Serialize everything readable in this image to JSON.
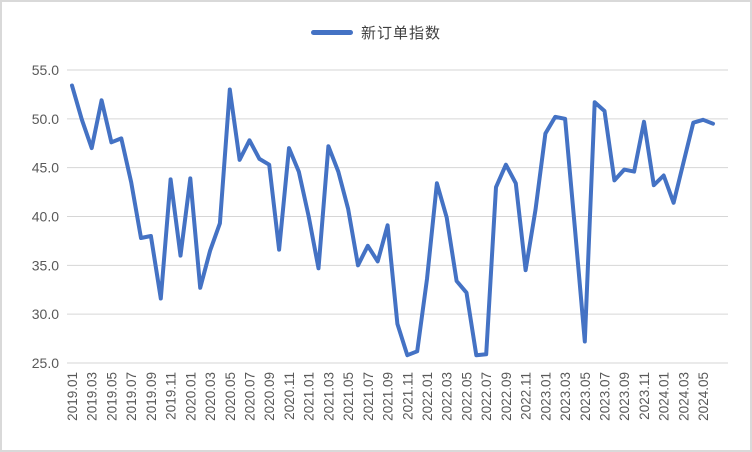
{
  "legend": {
    "label": "新订单指数"
  },
  "colors": {
    "series_line": "#4472C4",
    "gridline": "#D6D6D6",
    "tick_label": "#595959",
    "chart_border": "#D9D9D9"
  },
  "chart_data": {
    "type": "line",
    "title": "",
    "series_name": "新订单指数",
    "legend_position": "top",
    "grid": true,
    "ylim": [
      25.0,
      55.0
    ],
    "y_ticks": [
      25.0,
      30.0,
      35.0,
      40.0,
      45.0,
      50.0,
      55.0
    ],
    "x": [
      "2019.01",
      "2019.02",
      "2019.03",
      "2019.04",
      "2019.05",
      "2019.06",
      "2019.07",
      "2019.08",
      "2019.09",
      "2019.10",
      "2019.11",
      "2019.12",
      "2020.01",
      "2020.02",
      "2020.03",
      "2020.04",
      "2020.05",
      "2020.06",
      "2020.07",
      "2020.08",
      "2020.09",
      "2020.10",
      "2020.11",
      "2020.12",
      "2021.01",
      "2021.02",
      "2021.03",
      "2021.04",
      "2021.05",
      "2021.06",
      "2021.07",
      "2021.08",
      "2021.09",
      "2021.10",
      "2021.11",
      "2021.12",
      "2022.01",
      "2022.02",
      "2022.03",
      "2022.04",
      "2022.05",
      "2022.06",
      "2022.07",
      "2022.08",
      "2022.09",
      "2022.10",
      "2022.11",
      "2022.12",
      "2023.01",
      "2023.02",
      "2023.03",
      "2023.04",
      "2023.05",
      "2023.06",
      "2023.07",
      "2023.08",
      "2023.09",
      "2023.10",
      "2023.11",
      "2023.12",
      "2024.01",
      "2024.02",
      "2024.03",
      "2024.04",
      "2024.05",
      "2024.06"
    ],
    "values": [
      53.4,
      49.9,
      47.0,
      51.9,
      47.6,
      48.0,
      43.5,
      37.8,
      38.0,
      31.6,
      43.8,
      36.0,
      43.9,
      32.7,
      36.5,
      39.3,
      53.0,
      45.8,
      47.8,
      45.9,
      45.3,
      36.6,
      47.0,
      44.6,
      40.0,
      34.7,
      47.2,
      44.6,
      40.8,
      35.0,
      37.0,
      35.4,
      39.1,
      29.0,
      25.8,
      26.2,
      33.6,
      43.4,
      39.9,
      33.4,
      32.2,
      25.8,
      25.9,
      43.0,
      45.3,
      43.4,
      34.5,
      40.7,
      48.5,
      50.2,
      50.0,
      38.8,
      27.2,
      51.7,
      50.8,
      43.7,
      44.8,
      44.6,
      49.7,
      43.2,
      44.2,
      41.4,
      45.5,
      49.6,
      49.9,
      49.5
    ],
    "x_tick_every": 2
  }
}
